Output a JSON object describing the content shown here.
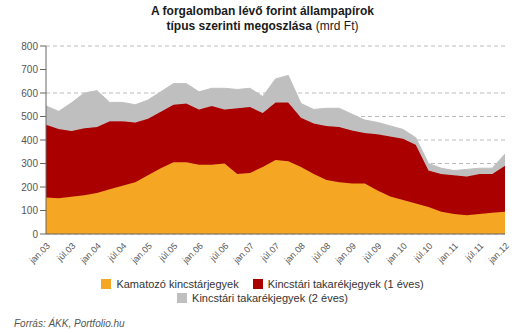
{
  "chart_data": {
    "type": "area",
    "title": "A forgalomban lévő forint állampapírok\ntípus szerinti megoszlása",
    "subtitle": "(mrd Ft)",
    "annotations": [
      "Forrás: ÁKK, Portfolio.hu"
    ],
    "categories": [
      "jan.03",
      null,
      "júl.03",
      null,
      "jan.04",
      null,
      "júl.04",
      null,
      "jan.05",
      null,
      "júl.05",
      null,
      "jan.06",
      null,
      "júl.06",
      null,
      "jan.07",
      null,
      "júl.07",
      null,
      "jan.08",
      null,
      "júl.08",
      null,
      "jan.09",
      null,
      "júl.09",
      null,
      "jan.10",
      null,
      "júl.10",
      null,
      "jan.11",
      null,
      "júl.11",
      null,
      "jan.12"
    ],
    "series": [
      {
        "name": "Kamatozó kincstárjegyek",
        "color": "#F5A623",
        "values": [
          155,
          152,
          158,
          165,
          175,
          190,
          205,
          220,
          250,
          280,
          305,
          305,
          295,
          295,
          300,
          255,
          260,
          285,
          315,
          310,
          285,
          255,
          230,
          220,
          215,
          215,
          185,
          160,
          145,
          130,
          115,
          95,
          85,
          80,
          85,
          90,
          95
        ]
      },
      {
        "name": "Kincstári takarékjegyek (1 éves)",
        "color": "#AA0000",
        "values": [
          310,
          295,
          280,
          285,
          280,
          290,
          275,
          255,
          240,
          240,
          245,
          250,
          235,
          250,
          230,
          280,
          280,
          230,
          245,
          250,
          210,
          215,
          230,
          235,
          225,
          215,
          240,
          255,
          260,
          250,
          155,
          160,
          165,
          165,
          170,
          165,
          195
        ]
      },
      {
        "name": "Kincstári takarékjegyek (2 éves)",
        "color": "#C0BFBF",
        "values": [
          80,
          75,
          120,
          150,
          155,
          80,
          80,
          75,
          80,
          85,
          90,
          85,
          75,
          75,
          90,
          80,
          80,
          70,
          100,
          115,
          60,
          60,
          75,
          80,
          70,
          55,
          50,
          45,
          40,
          30,
          30,
          25,
          20,
          30,
          25,
          25,
          50
        ]
      }
    ],
    "ylim": [
      0,
      800
    ],
    "yticks": [
      0,
      100,
      200,
      300,
      400,
      500,
      600,
      700,
      800
    ],
    "stacked": true,
    "grid": true,
    "legend": "bottom"
  }
}
